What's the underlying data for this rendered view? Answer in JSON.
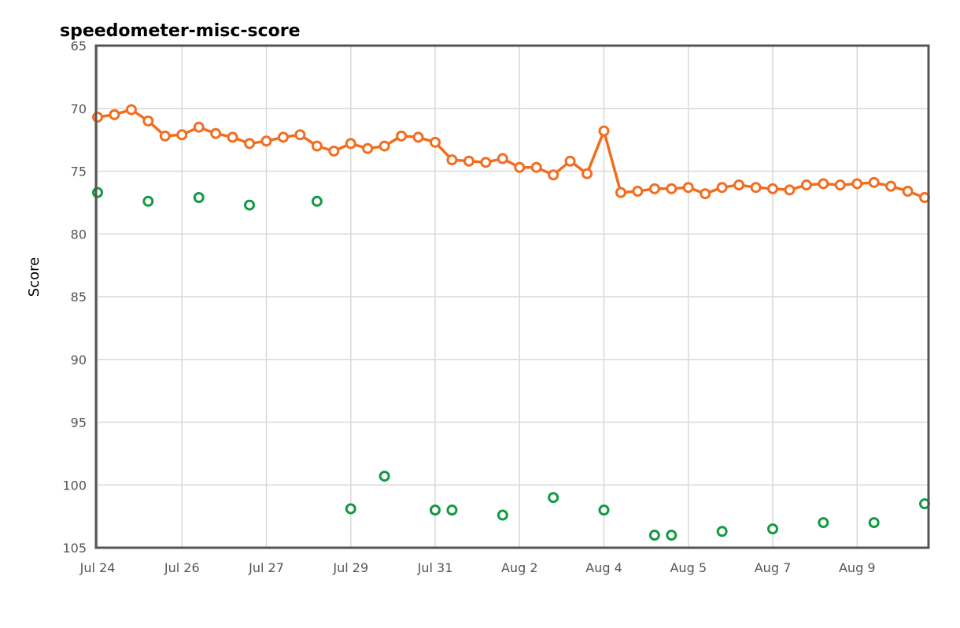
{
  "chart_data": {
    "type": "line",
    "title": "speedometer-misc-score",
    "xlabel": "",
    "ylabel": "Score",
    "y_inverted": true,
    "ylim": [
      65,
      105
    ],
    "yticks": [
      "65",
      "70",
      "75",
      "80",
      "85",
      "90",
      "95",
      "100",
      "105"
    ],
    "xticks": [
      "Jul 24",
      "Jul 26",
      "Jul 27",
      "Jul 29",
      "Jul 31",
      "Aug 2",
      "Aug 4",
      "Aug 5",
      "Aug 7",
      "Aug 9"
    ],
    "grid": true,
    "legend": "none",
    "series": [
      {
        "color": "#f26d1f",
        "style": "line-markers",
        "values": [
          70.7,
          70.5,
          70.1,
          71.0,
          72.2,
          72.1,
          71.5,
          72.0,
          72.3,
          72.8,
          72.6,
          72.3,
          72.1,
          73.0,
          73.4,
          72.8,
          73.2,
          73.0,
          72.2,
          72.3,
          72.7,
          74.1,
          74.2,
          74.3,
          74.0,
          74.7,
          74.7,
          75.3,
          74.2,
          75.2,
          71.8,
          76.7,
          76.6,
          76.4,
          76.4,
          76.3,
          76.8,
          76.3,
          76.1,
          76.3,
          76.4,
          76.5,
          76.1,
          76.0,
          76.1,
          76.0,
          75.9,
          76.2,
          76.6,
          77.1
        ]
      },
      {
        "color": "#129a42",
        "style": "markers",
        "points": [
          [
            0,
            76.7
          ],
          [
            3,
            77.4
          ],
          [
            6,
            77.1
          ],
          [
            9,
            77.7
          ],
          [
            13,
            77.4
          ],
          [
            15,
            101.9
          ],
          [
            17,
            99.3
          ],
          [
            20,
            102.0
          ],
          [
            21,
            102.0
          ],
          [
            24,
            102.4
          ],
          [
            27,
            101.0
          ],
          [
            30,
            102.0
          ],
          [
            33,
            104.0
          ],
          [
            34,
            104.0
          ],
          [
            37,
            103.7
          ],
          [
            40,
            103.5
          ],
          [
            43,
            103.0
          ],
          [
            46,
            103.0
          ],
          [
            49,
            101.5
          ]
        ]
      }
    ]
  }
}
